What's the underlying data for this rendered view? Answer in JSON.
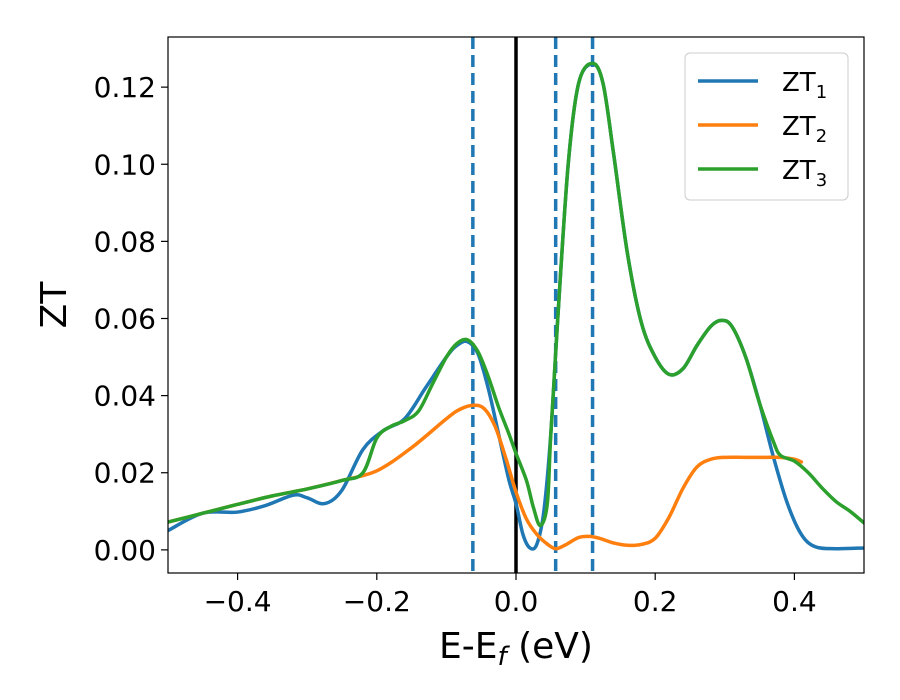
{
  "chart_data": {
    "type": "line",
    "xlabel": {
      "main": "E-E",
      "sub": "f",
      "unit": " (eV)"
    },
    "ylabel": "ZT",
    "xlim": [
      -0.5,
      0.5
    ],
    "ylim": [
      -0.006,
      0.133
    ],
    "xticks": [
      -0.4,
      -0.2,
      0.0,
      0.2,
      0.4
    ],
    "xtick_labels": [
      "−0.4",
      "−0.2",
      "0.0",
      "0.2",
      "0.4"
    ],
    "yticks": [
      0.0,
      0.02,
      0.04,
      0.06,
      0.08,
      0.1,
      0.12
    ],
    "ytick_labels": [
      "0.00",
      "0.02",
      "0.04",
      "0.06",
      "0.08",
      "0.10",
      "0.12"
    ],
    "legend_position": "upper-right",
    "grid": false,
    "vertical_lines": [
      {
        "x": 0.0,
        "style": "solid",
        "color": "#000000"
      },
      {
        "x": -0.062,
        "style": "dashed",
        "color": "#1f77b4"
      },
      {
        "x": 0.057,
        "style": "dashed",
        "color": "#1f77b4"
      },
      {
        "x": 0.11,
        "style": "dashed",
        "color": "#1f77b4"
      }
    ],
    "series": [
      {
        "name": "ZT",
        "sub": "1",
        "color": "#1f77b4",
        "points": [
          [
            -0.5,
            0.005
          ],
          [
            -0.45,
            0.0095
          ],
          [
            -0.4,
            0.0098
          ],
          [
            -0.36,
            0.0115
          ],
          [
            -0.32,
            0.0142
          ],
          [
            -0.3,
            0.0135
          ],
          [
            -0.275,
            0.012
          ],
          [
            -0.25,
            0.0155
          ],
          [
            -0.22,
            0.026
          ],
          [
            -0.19,
            0.031
          ],
          [
            -0.16,
            0.034
          ],
          [
            -0.13,
            0.042
          ],
          [
            -0.1,
            0.05
          ],
          [
            -0.085,
            0.053
          ],
          [
            -0.07,
            0.054
          ],
          [
            -0.055,
            0.051
          ],
          [
            -0.04,
            0.042
          ],
          [
            -0.025,
            0.03
          ],
          [
            -0.01,
            0.018
          ],
          [
            0.0,
            0.012
          ],
          [
            0.01,
            0.004
          ],
          [
            0.02,
            0.0005
          ],
          [
            0.03,
            0.0015
          ],
          [
            0.04,
            0.01
          ],
          [
            0.05,
            0.03
          ],
          [
            0.06,
            0.06
          ],
          [
            0.075,
            0.1
          ],
          [
            0.09,
            0.121
          ],
          [
            0.11,
            0.126
          ],
          [
            0.125,
            0.121
          ],
          [
            0.14,
            0.103
          ],
          [
            0.16,
            0.077
          ],
          [
            0.18,
            0.059
          ],
          [
            0.2,
            0.05
          ],
          [
            0.22,
            0.0455
          ],
          [
            0.24,
            0.047
          ],
          [
            0.26,
            0.053
          ],
          [
            0.28,
            0.058
          ],
          [
            0.295,
            0.0595
          ],
          [
            0.31,
            0.058
          ],
          [
            0.33,
            0.05
          ],
          [
            0.35,
            0.038
          ],
          [
            0.37,
            0.024
          ],
          [
            0.39,
            0.012
          ],
          [
            0.41,
            0.004
          ],
          [
            0.43,
            0.0008
          ],
          [
            0.46,
            0.0003
          ],
          [
            0.5,
            0.0005
          ]
        ]
      },
      {
        "name": "ZT",
        "sub": "2",
        "color": "#ff7f0e",
        "points": [
          [
            -0.5,
            0.0072
          ],
          [
            -0.45,
            0.0095
          ],
          [
            -0.4,
            0.0118
          ],
          [
            -0.35,
            0.014
          ],
          [
            -0.3,
            0.0158
          ],
          [
            -0.25,
            0.018
          ],
          [
            -0.2,
            0.0205
          ],
          [
            -0.15,
            0.0265
          ],
          [
            -0.1,
            0.034
          ],
          [
            -0.08,
            0.0365
          ],
          [
            -0.06,
            0.0375
          ],
          [
            -0.045,
            0.0365
          ],
          [
            -0.03,
            0.032
          ],
          [
            -0.015,
            0.024
          ],
          [
            0.0,
            0.015
          ],
          [
            0.015,
            0.008
          ],
          [
            0.03,
            0.004
          ],
          [
            0.045,
            0.0015
          ],
          [
            0.057,
            0.0003
          ],
          [
            0.07,
            0.0012
          ],
          [
            0.09,
            0.0032
          ],
          [
            0.105,
            0.0035
          ],
          [
            0.12,
            0.003
          ],
          [
            0.14,
            0.0018
          ],
          [
            0.16,
            0.0012
          ],
          [
            0.18,
            0.0014
          ],
          [
            0.2,
            0.003
          ],
          [
            0.22,
            0.0085
          ],
          [
            0.24,
            0.016
          ],
          [
            0.26,
            0.0215
          ],
          [
            0.28,
            0.0235
          ],
          [
            0.3,
            0.024
          ],
          [
            0.33,
            0.024
          ],
          [
            0.36,
            0.024
          ],
          [
            0.38,
            0.024
          ],
          [
            0.4,
            0.0235
          ],
          [
            0.41,
            0.0228
          ]
        ]
      },
      {
        "name": "ZT",
        "sub": "3",
        "color": "#2ca02c",
        "points": [
          [
            -0.5,
            0.0072
          ],
          [
            -0.45,
            0.0095
          ],
          [
            -0.4,
            0.0118
          ],
          [
            -0.35,
            0.014
          ],
          [
            -0.3,
            0.0158
          ],
          [
            -0.25,
            0.018
          ],
          [
            -0.22,
            0.02
          ],
          [
            -0.2,
            0.029
          ],
          [
            -0.18,
            0.032
          ],
          [
            -0.16,
            0.0335
          ],
          [
            -0.14,
            0.036
          ],
          [
            -0.12,
            0.043
          ],
          [
            -0.1,
            0.05
          ],
          [
            -0.085,
            0.0535
          ],
          [
            -0.07,
            0.0545
          ],
          [
            -0.055,
            0.0515
          ],
          [
            -0.04,
            0.045
          ],
          [
            -0.025,
            0.037
          ],
          [
            -0.01,
            0.03
          ],
          [
            0.0,
            0.025
          ],
          [
            0.015,
            0.018
          ],
          [
            0.025,
            0.011
          ],
          [
            0.035,
            0.0063
          ],
          [
            0.045,
            0.012
          ],
          [
            0.05,
            0.03
          ],
          [
            0.06,
            0.06
          ],
          [
            0.075,
            0.1
          ],
          [
            0.09,
            0.121
          ],
          [
            0.11,
            0.1262
          ],
          [
            0.125,
            0.121
          ],
          [
            0.14,
            0.103
          ],
          [
            0.16,
            0.077
          ],
          [
            0.18,
            0.059
          ],
          [
            0.2,
            0.05
          ],
          [
            0.22,
            0.0455
          ],
          [
            0.24,
            0.047
          ],
          [
            0.26,
            0.053
          ],
          [
            0.28,
            0.058
          ],
          [
            0.295,
            0.0595
          ],
          [
            0.31,
            0.058
          ],
          [
            0.33,
            0.05
          ],
          [
            0.35,
            0.038
          ],
          [
            0.37,
            0.028
          ],
          [
            0.38,
            0.0245
          ],
          [
            0.4,
            0.023
          ],
          [
            0.42,
            0.02
          ],
          [
            0.44,
            0.016
          ],
          [
            0.46,
            0.0125
          ],
          [
            0.48,
            0.01
          ],
          [
            0.5,
            0.007
          ]
        ]
      }
    ]
  }
}
